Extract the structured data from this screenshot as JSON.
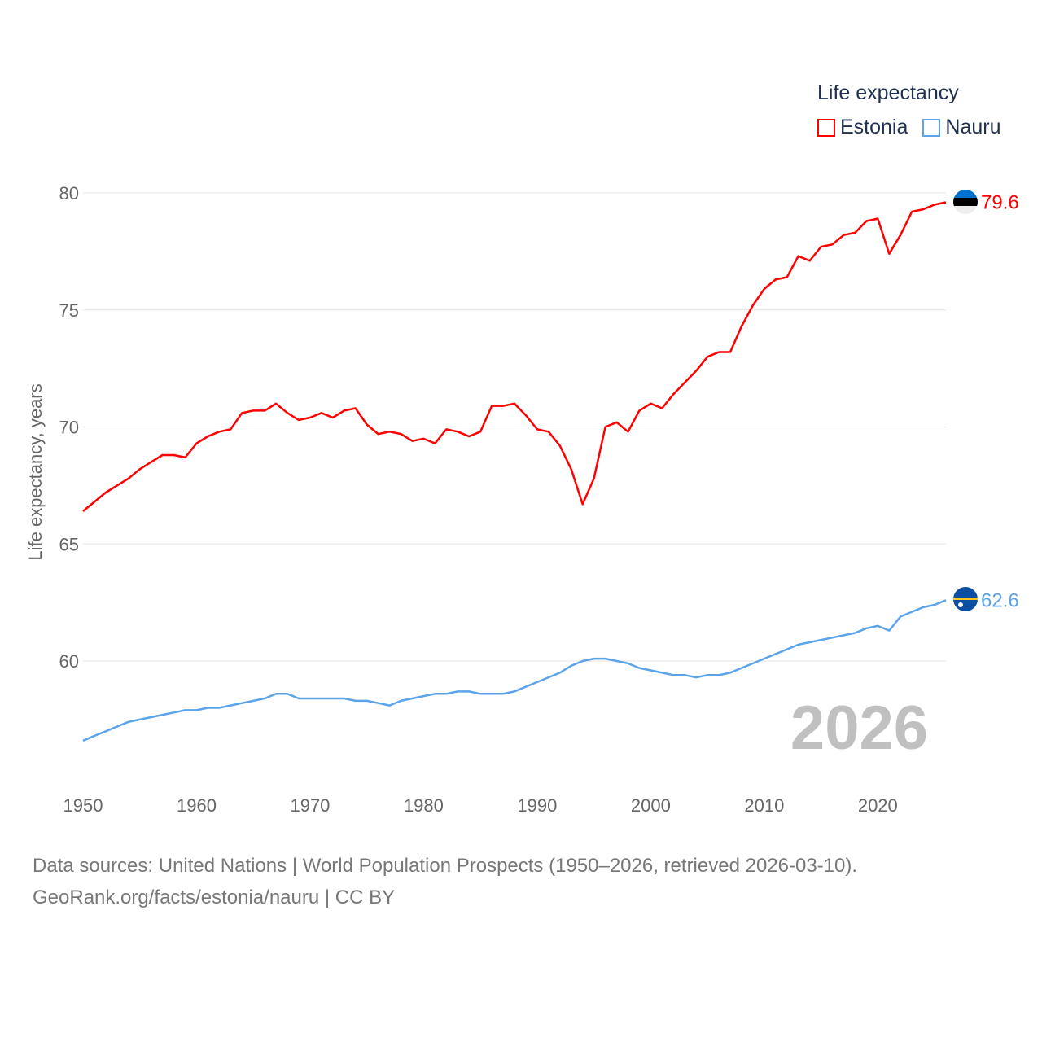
{
  "chart_data": {
    "type": "line",
    "title": "Life expectancy",
    "ylabel": "Life expectancy, years",
    "xlabel": "",
    "xlim": [
      1950,
      2026
    ],
    "ylim": [
      56.2,
      80.4
    ],
    "x_ticks": [
      1950,
      1960,
      1970,
      1980,
      1990,
      2000,
      2010,
      2020
    ],
    "y_ticks": [
      60,
      65,
      70,
      75,
      80
    ],
    "grid": true,
    "legend_position": "top-right",
    "watermark_year": "2026",
    "x": [
      1950,
      1951,
      1952,
      1953,
      1954,
      1955,
      1956,
      1957,
      1958,
      1959,
      1960,
      1961,
      1962,
      1963,
      1964,
      1965,
      1966,
      1967,
      1968,
      1969,
      1970,
      1971,
      1972,
      1973,
      1974,
      1975,
      1976,
      1977,
      1978,
      1979,
      1980,
      1981,
      1982,
      1983,
      1984,
      1985,
      1986,
      1987,
      1988,
      1989,
      1990,
      1991,
      1992,
      1993,
      1994,
      1995,
      1996,
      1997,
      1998,
      1999,
      2000,
      2001,
      2002,
      2003,
      2004,
      2005,
      2006,
      2007,
      2008,
      2009,
      2010,
      2011,
      2012,
      2013,
      2014,
      2015,
      2016,
      2017,
      2018,
      2019,
      2020,
      2021,
      2022,
      2023,
      2024,
      2025,
      2026
    ],
    "series": [
      {
        "name": "Estonia",
        "color": "#ff0000",
        "end_label": "79.6",
        "values": [
          66.4,
          66.8,
          67.2,
          67.5,
          67.8,
          68.2,
          68.5,
          68.8,
          68.8,
          68.7,
          69.3,
          69.6,
          69.8,
          69.9,
          70.6,
          70.7,
          70.7,
          71.0,
          70.6,
          70.3,
          70.4,
          70.6,
          70.4,
          70.7,
          70.8,
          70.1,
          69.7,
          69.8,
          69.7,
          69.4,
          69.5,
          69.3,
          69.9,
          69.8,
          69.6,
          69.8,
          70.9,
          70.9,
          71.0,
          70.5,
          69.9,
          69.8,
          69.2,
          68.2,
          66.7,
          67.8,
          70.0,
          70.2,
          69.8,
          70.7,
          71.0,
          70.8,
          71.4,
          71.9,
          72.4,
          73.0,
          73.2,
          73.2,
          74.3,
          75.2,
          75.9,
          76.3,
          76.4,
          77.3,
          77.1,
          77.7,
          77.8,
          78.2,
          78.3,
          78.8,
          78.9,
          77.4,
          78.2,
          79.2,
          79.3,
          79.5,
          79.6
        ]
      },
      {
        "name": "Nauru",
        "color": "#5ba4ea",
        "end_label": "62.6",
        "values": [
          56.6,
          56.8,
          57.0,
          57.2,
          57.4,
          57.5,
          57.6,
          57.7,
          57.8,
          57.9,
          57.9,
          58.0,
          58.0,
          58.1,
          58.2,
          58.3,
          58.4,
          58.6,
          58.6,
          58.4,
          58.4,
          58.4,
          58.4,
          58.4,
          58.3,
          58.3,
          58.2,
          58.1,
          58.3,
          58.4,
          58.5,
          58.6,
          58.6,
          58.7,
          58.7,
          58.6,
          58.6,
          58.6,
          58.7,
          58.9,
          59.1,
          59.3,
          59.5,
          59.8,
          60.0,
          60.1,
          60.1,
          60.0,
          59.9,
          59.7,
          59.6,
          59.5,
          59.4,
          59.4,
          59.3,
          59.4,
          59.4,
          59.5,
          59.7,
          59.9,
          60.1,
          60.3,
          60.5,
          60.7,
          60.8,
          60.9,
          61.0,
          61.1,
          61.2,
          61.4,
          61.5,
          61.3,
          61.9,
          62.1,
          62.3,
          62.4,
          62.6
        ]
      }
    ]
  },
  "legend": {
    "title": "Life expectancy",
    "items": [
      "Estonia",
      "Nauru"
    ]
  },
  "footer": {
    "line1": "Data sources: United Nations | World Population Prospects (1950–2026, retrieved 2026-03-10).",
    "line2": "GeoRank.org/facts/estonia/nauru | CC BY"
  }
}
